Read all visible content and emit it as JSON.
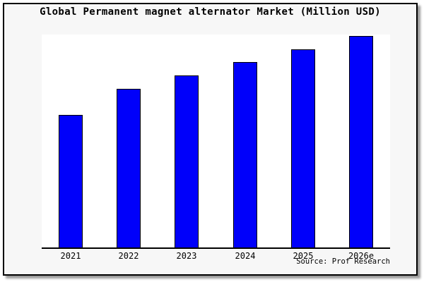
{
  "title": "Global Permanent magnet alternator Market (Million USD)",
  "source": "Source: Prof Research",
  "colors": {
    "bar_fill": "#0000fa",
    "bar_border": "#000000",
    "card_background": "#f7f7f7",
    "plot_background": "#ffffff",
    "axis": "#000000",
    "text": "#000000"
  },
  "chart_data": {
    "type": "bar",
    "title": "Global Permanent magnet alternator Market (Million USD)",
    "categories": [
      "2021",
      "2022",
      "2023",
      "2024",
      "2025",
      "2026e"
    ],
    "values": [
      62.7,
      75.0,
      81.3,
      87.7,
      93.7,
      100.0
    ],
    "values_note": "No y-axis, gridlines or data labels are shown in the image; values are relative bar heights indexed to 2026e = 100",
    "xlabel": "",
    "ylabel": "",
    "ylim": [
      0,
      100.7
    ],
    "grid": false,
    "legend": false,
    "annotations": [
      "Source: Prof Research"
    ]
  }
}
